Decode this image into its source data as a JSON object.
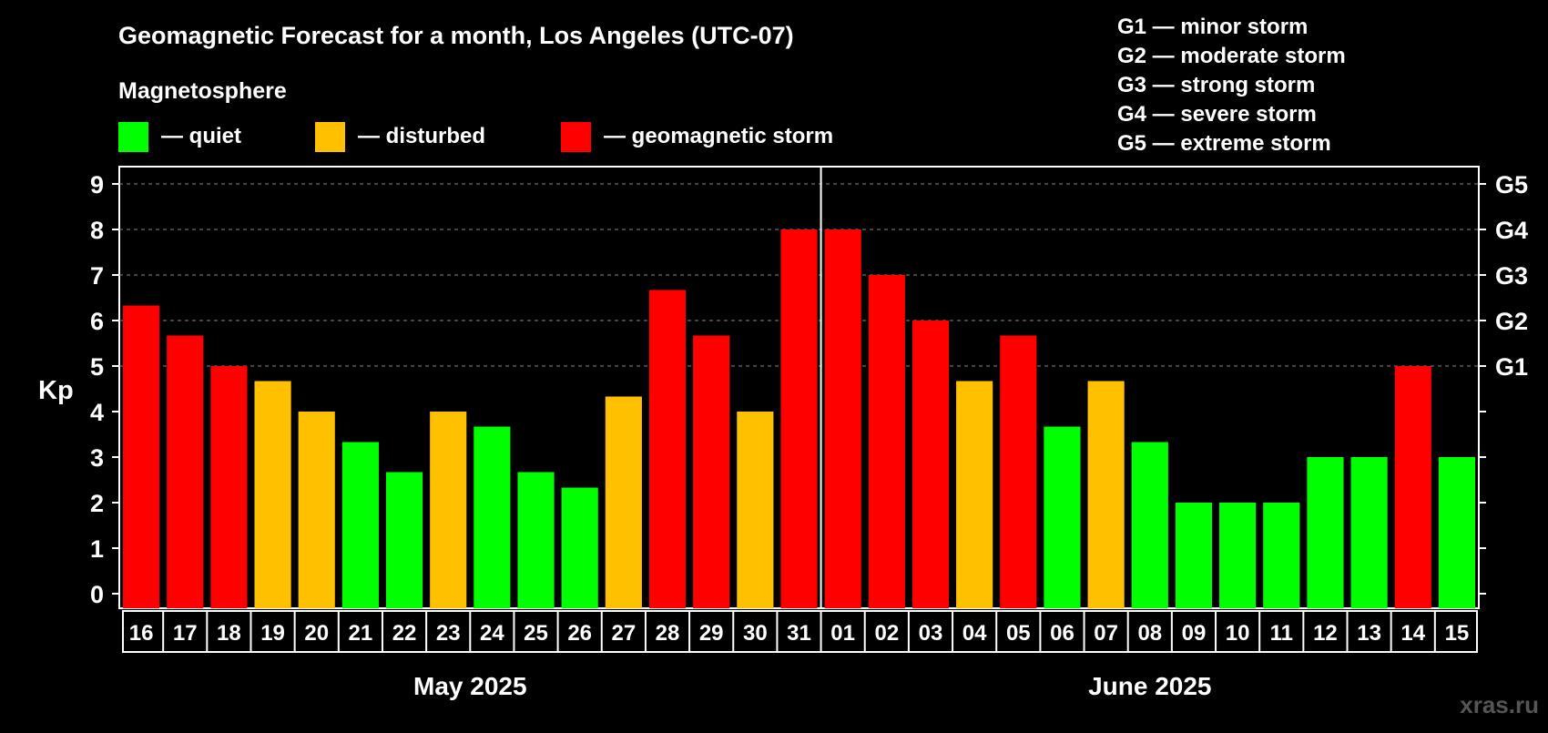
{
  "chart_data": {
    "type": "bar",
    "title": "Geomagnetic Forecast for a month, Los Angeles (UTC-07)",
    "legend_title": "Magnetosphere",
    "legend": [
      {
        "label": "— quiet",
        "color": "#00ff00"
      },
      {
        "label": "— disturbed",
        "color": "#ffc000"
      },
      {
        "label": "— geomagnetic storm",
        "color": "#ff0000"
      }
    ],
    "storm_scale": [
      "G1 — minor storm",
      "G2 — moderate storm",
      "G3 — strong storm",
      "G4 — severe storm",
      "G5 — extreme storm"
    ],
    "ylabel": "Kp",
    "ylim": [
      0,
      9
    ],
    "yticks": [
      "0",
      "1",
      "2",
      "3",
      "4",
      "5",
      "6",
      "7",
      "8",
      "9"
    ],
    "right_ticks": [
      {
        "kp": 5,
        "label": "G1"
      },
      {
        "kp": 6,
        "label": "G2"
      },
      {
        "kp": 7,
        "label": "G3"
      },
      {
        "kp": 8,
        "label": "G4"
      },
      {
        "kp": 9,
        "label": "G5"
      }
    ],
    "grid": "dashed at Kp 5-9",
    "categories": [
      "16",
      "17",
      "18",
      "19",
      "20",
      "21",
      "22",
      "23",
      "24",
      "25",
      "26",
      "27",
      "28",
      "29",
      "30",
      "31",
      "01",
      "02",
      "03",
      "04",
      "05",
      "06",
      "07",
      "08",
      "09",
      "10",
      "11",
      "12",
      "13",
      "14",
      "15"
    ],
    "values": [
      6.33,
      5.67,
      5.0,
      4.67,
      4.0,
      3.33,
      2.67,
      4.0,
      3.67,
      2.67,
      2.33,
      4.33,
      6.67,
      5.67,
      4.0,
      8.0,
      8.0,
      7.0,
      6.0,
      4.67,
      5.67,
      3.67,
      4.67,
      3.33,
      2.0,
      2.0,
      2.0,
      3.0,
      3.0,
      5.0,
      3.0
    ],
    "levels": [
      "storm",
      "storm",
      "storm",
      "disturbed",
      "disturbed",
      "quiet",
      "quiet",
      "disturbed",
      "quiet",
      "quiet",
      "quiet",
      "disturbed",
      "storm",
      "storm",
      "disturbed",
      "storm",
      "storm",
      "storm",
      "storm",
      "disturbed",
      "storm",
      "quiet",
      "disturbed",
      "quiet",
      "quiet",
      "quiet",
      "quiet",
      "quiet",
      "quiet",
      "storm",
      "quiet"
    ],
    "level_colors": {
      "quiet": "#00ff00",
      "disturbed": "#ffc000",
      "storm": "#ff0000"
    },
    "months": [
      {
        "label": "May 2025",
        "days": 16
      },
      {
        "label": "June 2025",
        "days": 15
      }
    ]
  },
  "watermark": "xras.ru"
}
